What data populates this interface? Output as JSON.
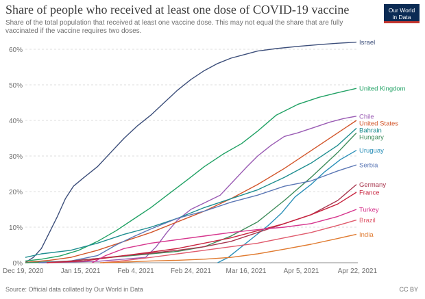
{
  "header": {
    "title": "Share of people who received at least one dose of COVID-19 vaccine",
    "subtitle": "Share of the total population that received at least one vaccine dose. This may not equal the share that are fully vaccinated if the vaccine requires two doses.",
    "logo_line1": "Our World",
    "logo_line2": "in Data"
  },
  "footer": {
    "source": "Source: Official data collated by Our World in Data",
    "license": "CC BY"
  },
  "chart_data": {
    "type": "line",
    "x_labels": [
      "Dec 19, 2020",
      "Jan 15, 2021",
      "Feb 4, 2021",
      "Feb 24, 2021",
      "Mar 16, 2021",
      "Apr 5, 2021",
      "Apr 22, 2021"
    ],
    "x_range": [
      "2020-12-19",
      "2021-04-22"
    ],
    "ylim": [
      0,
      60
    ],
    "y_ticks": [
      0,
      10,
      20,
      30,
      40,
      50,
      60
    ],
    "y_tick_labels": [
      "0%",
      "10%",
      "20%",
      "30%",
      "40%",
      "50%",
      "60%"
    ],
    "grid": "horizontal dashed",
    "legend": "labels at line ends (right)",
    "series": [
      {
        "name": "Israel",
        "color": "#3c4e7a",
        "points": [
          [
            "2020-12-19",
            0.1
          ],
          [
            "2020-12-22",
            1.5
          ],
          [
            "2020-12-25",
            4
          ],
          [
            "2020-12-28",
            8.5
          ],
          [
            "2020-12-31",
            13
          ],
          [
            "2021-01-03",
            18
          ],
          [
            "2021-01-06",
            21.5
          ],
          [
            "2021-01-10",
            24
          ],
          [
            "2021-01-15",
            27
          ],
          [
            "2021-01-20",
            31
          ],
          [
            "2021-01-25",
            35
          ],
          [
            "2021-01-30",
            38.5
          ],
          [
            "2021-02-04",
            41.5
          ],
          [
            "2021-02-09",
            45
          ],
          [
            "2021-02-14",
            48.5
          ],
          [
            "2021-02-19",
            51.5
          ],
          [
            "2021-02-24",
            54
          ],
          [
            "2021-03-01",
            56
          ],
          [
            "2021-03-06",
            57.5
          ],
          [
            "2021-03-11",
            58.5
          ],
          [
            "2021-03-16",
            59.5
          ],
          [
            "2021-03-23",
            60.2
          ],
          [
            "2021-03-31",
            60.8
          ],
          [
            "2021-04-08",
            61.3
          ],
          [
            "2021-04-15",
            61.7
          ],
          [
            "2021-04-22",
            62
          ]
        ]
      },
      {
        "name": "United Kingdom",
        "color": "#20a164",
        "points": [
          [
            "2020-12-19",
            0.5
          ],
          [
            "2020-12-25",
            1
          ],
          [
            "2021-01-01",
            1.9
          ],
          [
            "2021-01-08",
            3.5
          ],
          [
            "2021-01-15",
            6
          ],
          [
            "2021-01-22",
            9
          ],
          [
            "2021-01-29",
            12.5
          ],
          [
            "2021-02-04",
            15.5
          ],
          [
            "2021-02-11",
            19.5
          ],
          [
            "2021-02-18",
            23.5
          ],
          [
            "2021-02-24",
            27
          ],
          [
            "2021-03-03",
            30.5
          ],
          [
            "2021-03-10",
            33.5
          ],
          [
            "2021-03-16",
            37
          ],
          [
            "2021-03-23",
            41.5
          ],
          [
            "2021-03-31",
            44.5
          ],
          [
            "2021-04-08",
            46.5
          ],
          [
            "2021-04-15",
            47.8
          ],
          [
            "2021-04-22",
            49
          ]
        ]
      },
      {
        "name": "Chile",
        "color": "#9a5cb4",
        "points": [
          [
            "2020-12-25",
            0
          ],
          [
            "2021-01-15",
            0.4
          ],
          [
            "2021-02-02",
            1.5
          ],
          [
            "2021-02-06",
            4.5
          ],
          [
            "2021-02-10",
            8.5
          ],
          [
            "2021-02-14",
            12
          ],
          [
            "2021-02-19",
            15
          ],
          [
            "2021-02-24",
            16.8
          ],
          [
            "2021-03-02",
            19
          ],
          [
            "2021-03-07",
            23
          ],
          [
            "2021-03-12",
            27
          ],
          [
            "2021-03-16",
            30
          ],
          [
            "2021-03-21",
            33
          ],
          [
            "2021-03-26",
            35.5
          ],
          [
            "2021-03-31",
            36.5
          ],
          [
            "2021-04-06",
            38
          ],
          [
            "2021-04-12",
            39.5
          ],
          [
            "2021-04-17",
            40.5
          ],
          [
            "2021-04-22",
            41.2
          ]
        ]
      },
      {
        "name": "United States",
        "color": "#d2552a",
        "points": [
          [
            "2020-12-19",
            0.1
          ],
          [
            "2020-12-28",
            0.7
          ],
          [
            "2021-01-05",
            1.5
          ],
          [
            "2021-01-15",
            3.5
          ],
          [
            "2021-01-25",
            6
          ],
          [
            "2021-02-04",
            8.5
          ],
          [
            "2021-02-14",
            11.5
          ],
          [
            "2021-02-24",
            14.5
          ],
          [
            "2021-03-06",
            18
          ],
          [
            "2021-03-16",
            22
          ],
          [
            "2021-03-26",
            26.5
          ],
          [
            "2021-04-05",
            31.5
          ],
          [
            "2021-04-13",
            35.5
          ],
          [
            "2021-04-22",
            40
          ]
        ]
      },
      {
        "name": "Bahrain",
        "color": "#1d8d8f",
        "points": [
          [
            "2020-12-19",
            1.5
          ],
          [
            "2020-12-25",
            2.5
          ],
          [
            "2021-01-05",
            3.5
          ],
          [
            "2021-01-15",
            5.5
          ],
          [
            "2021-01-25",
            8
          ],
          [
            "2021-02-04",
            10
          ],
          [
            "2021-02-14",
            12.5
          ],
          [
            "2021-02-24",
            15.5
          ],
          [
            "2021-03-06",
            18
          ],
          [
            "2021-03-16",
            20.5
          ],
          [
            "2021-03-26",
            24
          ],
          [
            "2021-04-05",
            28
          ],
          [
            "2021-04-15",
            33
          ],
          [
            "2021-04-22",
            37.8
          ]
        ]
      },
      {
        "name": "Hungary",
        "color": "#3e8c5a",
        "points": [
          [
            "2020-12-19",
            0
          ],
          [
            "2021-01-05",
            0.5
          ],
          [
            "2021-01-15",
            1.2
          ],
          [
            "2021-01-25",
            1.8
          ],
          [
            "2021-02-04",
            2.5
          ],
          [
            "2021-02-14",
            3.2
          ],
          [
            "2021-02-24",
            4.5
          ],
          [
            "2021-03-06",
            7.5
          ],
          [
            "2021-03-16",
            11.5
          ],
          [
            "2021-03-26",
            17.5
          ],
          [
            "2021-04-05",
            24
          ],
          [
            "2021-04-15",
            31
          ],
          [
            "2021-04-22",
            36.5
          ]
        ]
      },
      {
        "name": "Uruguay",
        "color": "#2a8fb8",
        "points": [
          [
            "2021-03-01",
            0
          ],
          [
            "2021-03-05",
            1.5
          ],
          [
            "2021-03-10",
            4.5
          ],
          [
            "2021-03-15",
            7.5
          ],
          [
            "2021-03-20",
            10.5
          ],
          [
            "2021-03-25",
            14
          ],
          [
            "2021-03-30",
            18.5
          ],
          [
            "2021-04-05",
            22
          ],
          [
            "2021-04-10",
            25.5
          ],
          [
            "2021-04-16",
            29
          ],
          [
            "2021-04-22",
            31.6
          ]
        ]
      },
      {
        "name": "Serbia",
        "color": "#5b77b5",
        "points": [
          [
            "2020-12-24",
            0
          ],
          [
            "2021-01-05",
            0.5
          ],
          [
            "2021-01-15",
            2
          ],
          [
            "2021-01-22",
            5
          ],
          [
            "2021-01-29",
            7.5
          ],
          [
            "2021-02-04",
            9.5
          ],
          [
            "2021-02-14",
            12.5
          ],
          [
            "2021-02-24",
            14.5
          ],
          [
            "2021-03-06",
            17
          ],
          [
            "2021-03-16",
            19
          ],
          [
            "2021-03-26",
            21.5
          ],
          [
            "2021-04-05",
            23
          ],
          [
            "2021-04-15",
            25.8
          ],
          [
            "2021-04-22",
            27.5
          ]
        ]
      },
      {
        "name": "Germany",
        "color": "#a8364e",
        "points": [
          [
            "2020-12-27",
            0
          ],
          [
            "2021-01-05",
            0.5
          ],
          [
            "2021-01-15",
            1.2
          ],
          [
            "2021-01-25",
            2
          ],
          [
            "2021-02-04",
            2.7
          ],
          [
            "2021-02-14",
            3.5
          ],
          [
            "2021-02-24",
            4.5
          ],
          [
            "2021-03-06",
            6
          ],
          [
            "2021-03-16",
            8.5
          ],
          [
            "2021-03-26",
            11
          ],
          [
            "2021-04-05",
            13.5
          ],
          [
            "2021-04-15",
            17.5
          ],
          [
            "2021-04-22",
            22
          ]
        ]
      },
      {
        "name": "France",
        "color": "#c8243f",
        "points": [
          [
            "2020-12-27",
            0
          ],
          [
            "2021-01-10",
            0.5
          ],
          [
            "2021-01-20",
            1.5
          ],
          [
            "2021-02-04",
            3
          ],
          [
            "2021-02-14",
            4
          ],
          [
            "2021-02-24",
            5.5
          ],
          [
            "2021-03-06",
            7
          ],
          [
            "2021-03-16",
            9
          ],
          [
            "2021-03-26",
            11
          ],
          [
            "2021-04-05",
            13.5
          ],
          [
            "2021-04-15",
            16.5
          ],
          [
            "2021-04-22",
            19.8
          ]
        ]
      },
      {
        "name": "Turkey",
        "color": "#d6358d",
        "points": [
          [
            "2021-01-13",
            0
          ],
          [
            "2021-01-18",
            2
          ],
          [
            "2021-01-25",
            4
          ],
          [
            "2021-02-04",
            5.5
          ],
          [
            "2021-02-14",
            6.5
          ],
          [
            "2021-02-24",
            7.5
          ],
          [
            "2021-03-06",
            8.5
          ],
          [
            "2021-03-16",
            9.3
          ],
          [
            "2021-03-26",
            10
          ],
          [
            "2021-04-05",
            11
          ],
          [
            "2021-04-15",
            13
          ],
          [
            "2021-04-22",
            15
          ]
        ]
      },
      {
        "name": "Brazil",
        "color": "#e05b6d",
        "points": [
          [
            "2021-01-17",
            0
          ],
          [
            "2021-01-25",
            0.6
          ],
          [
            "2021-02-04",
            1.5
          ],
          [
            "2021-02-14",
            2.5
          ],
          [
            "2021-02-24",
            3.5
          ],
          [
            "2021-03-06",
            4.5
          ],
          [
            "2021-03-16",
            5.5
          ],
          [
            "2021-03-26",
            7
          ],
          [
            "2021-04-05",
            8.5
          ],
          [
            "2021-04-15",
            10.5
          ],
          [
            "2021-04-22",
            12
          ]
        ]
      },
      {
        "name": "India",
        "color": "#e07b30",
        "points": [
          [
            "2021-01-16",
            0
          ],
          [
            "2021-01-25",
            0.2
          ],
          [
            "2021-02-04",
            0.5
          ],
          [
            "2021-02-14",
            0.7
          ],
          [
            "2021-02-24",
            1
          ],
          [
            "2021-03-06",
            1.5
          ],
          [
            "2021-03-16",
            2.5
          ],
          [
            "2021-03-26",
            3.8
          ],
          [
            "2021-04-05",
            5.2
          ],
          [
            "2021-04-15",
            6.8
          ],
          [
            "2021-04-22",
            8
          ]
        ]
      }
    ]
  }
}
